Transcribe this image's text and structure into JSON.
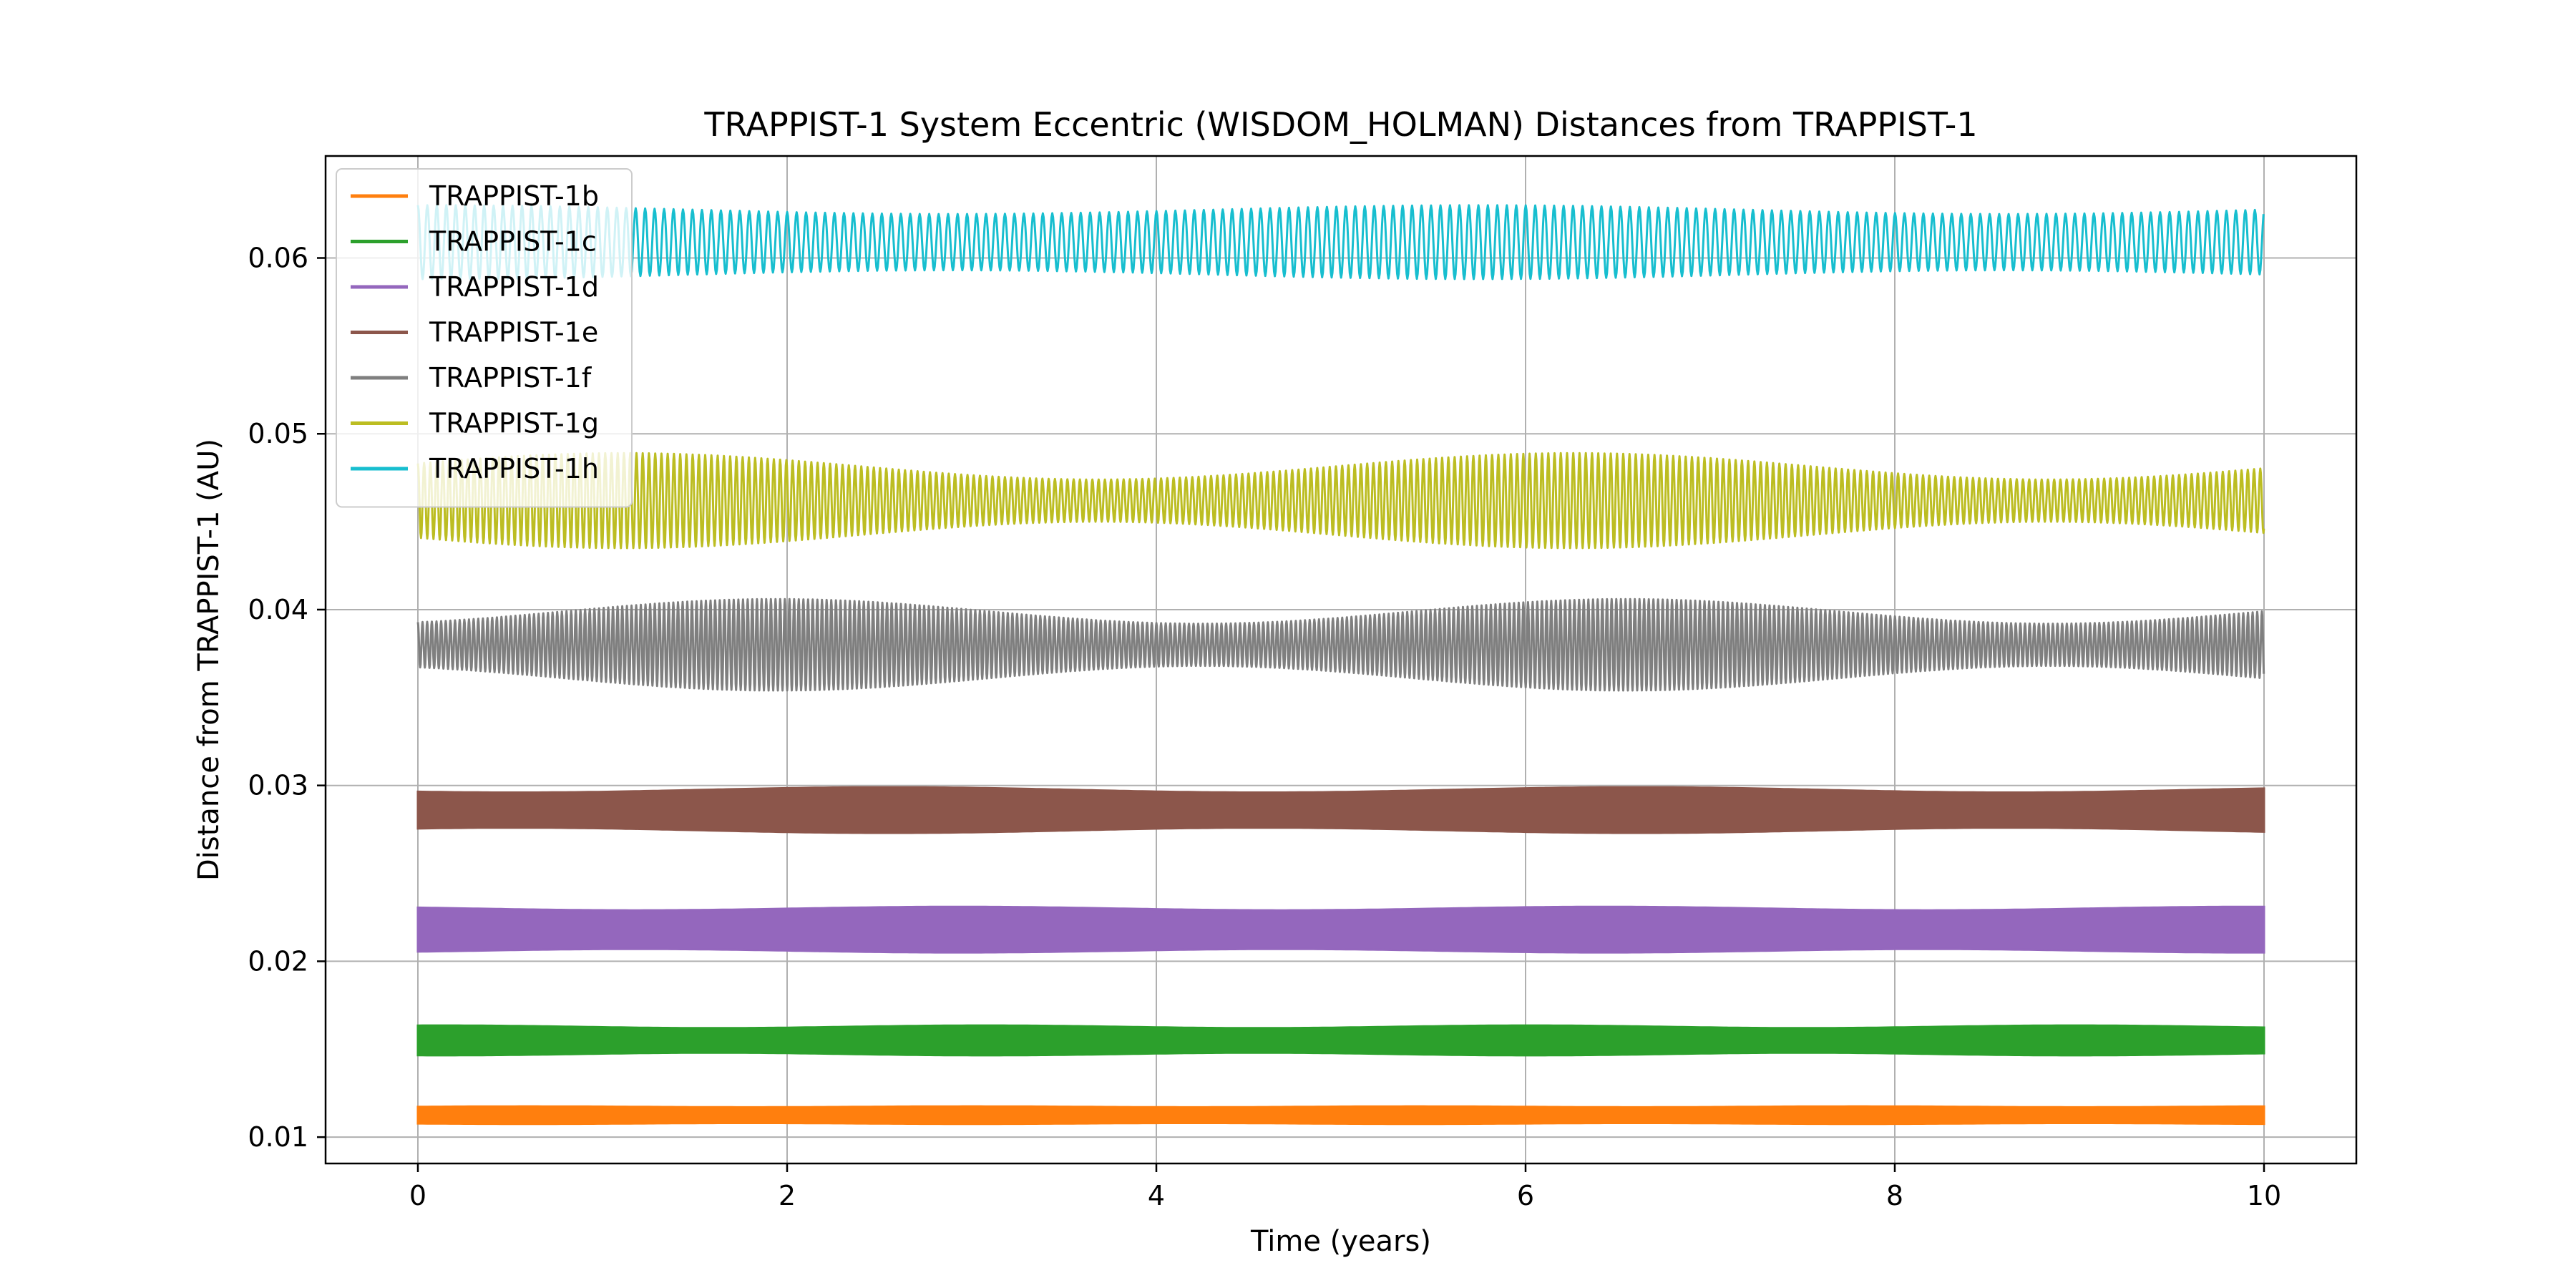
{
  "chart_data": {
    "type": "line",
    "title": "TRAPPIST-1 System Eccentric (WISDOM_HOLMAN) Distances from TRAPPIST-1",
    "xlabel": "Time (years)",
    "ylabel": "Distance from TRAPPIST-1 (AU)",
    "xlim": [
      -0.5,
      10.5
    ],
    "ylim": [
      0.0085,
      0.0658
    ],
    "xticks": [
      0,
      2,
      4,
      6,
      8,
      10
    ],
    "xtick_labels": [
      "0",
      "2",
      "4",
      "6",
      "8",
      "10"
    ],
    "yticks": [
      0.01,
      0.02,
      0.03,
      0.04,
      0.05,
      0.06
    ],
    "ytick_labels": [
      "0.01",
      "0.02",
      "0.03",
      "0.04",
      "0.05",
      "0.06"
    ],
    "grid": true,
    "legend_position": "top-left",
    "time_range": [
      0,
      10
    ],
    "series": [
      {
        "name": "TRAPPIST-1b",
        "color": "#ff7f0e",
        "mean": 0.01125,
        "amplitude_min": 0.00045,
        "amplitude_max": 0.0005,
        "period_years": 0.00416
      },
      {
        "name": "TRAPPIST-1c",
        "color": "#2ca02c",
        "mean": 0.0155,
        "amplitude_min": 0.0007,
        "amplitude_max": 0.00085,
        "period_years": 0.00663
      },
      {
        "name": "TRAPPIST-1d",
        "color": "#9467bd",
        "mean": 0.0218,
        "amplitude_min": 0.0011,
        "amplitude_max": 0.0013,
        "period_years": 0.01107
      },
      {
        "name": "TRAPPIST-1e",
        "color": "#8c564b",
        "mean": 0.0286,
        "amplitude_min": 0.001,
        "amplitude_max": 0.0013,
        "period_years": 0.01671
      },
      {
        "name": "TRAPPIST-1f",
        "color": "#7f7f7f",
        "mean": 0.038,
        "amplitude_min": 0.0012,
        "amplitude_max": 0.0026,
        "period_years": 0.02516
      },
      {
        "name": "TRAPPIST-1g",
        "color": "#bcbd22",
        "mean": 0.0462,
        "amplitude_min": 0.0012,
        "amplitude_max": 0.0027,
        "period_years": 0.03383
      },
      {
        "name": "TRAPPIST-1h",
        "color": "#17becf",
        "mean": 0.0609,
        "amplitude_min": 0.0016,
        "amplitude_max": 0.0021,
        "period_years": 0.05129
      }
    ]
  }
}
